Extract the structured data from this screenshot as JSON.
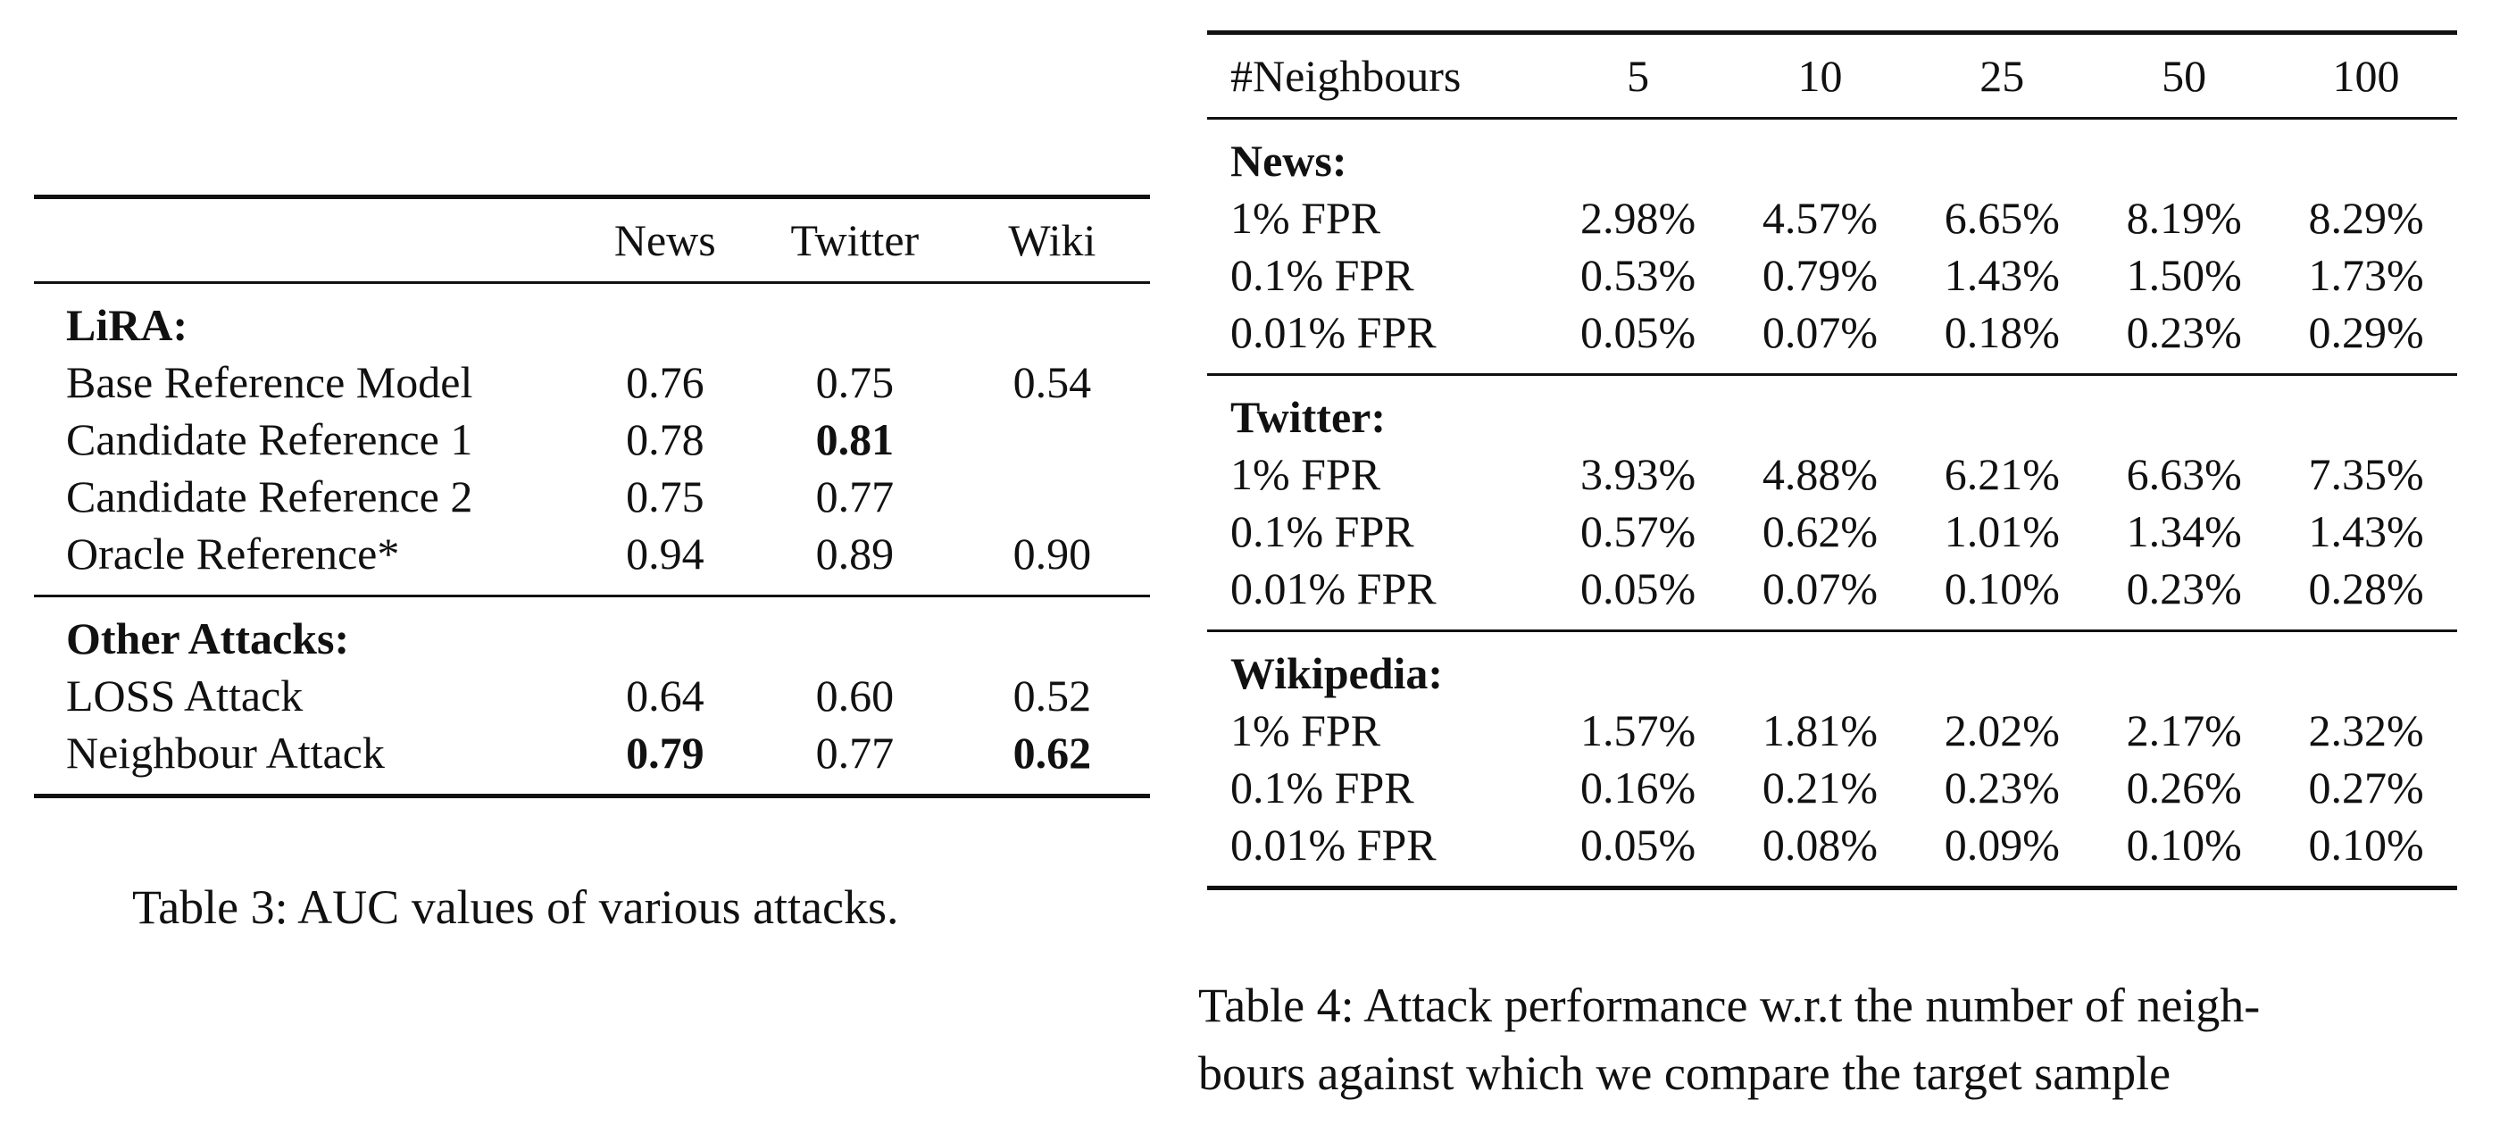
{
  "table3": {
    "columns": [
      "",
      "News",
      "Twitter",
      "Wiki"
    ],
    "sections": [
      {
        "title": "LiRA:",
        "rows": [
          {
            "label": "Base Reference Model",
            "values": [
              "0.76",
              "0.75",
              "0.54"
            ],
            "bold": [
              false,
              false,
              false
            ]
          },
          {
            "label": "Candidate Reference 1",
            "values": [
              "0.78",
              "0.81",
              ""
            ],
            "bold": [
              false,
              true,
              false
            ]
          },
          {
            "label": "Candidate Reference 2",
            "values": [
              "0.75",
              "0.77",
              ""
            ],
            "bold": [
              false,
              false,
              false
            ]
          },
          {
            "label": "Oracle Reference*",
            "values": [
              "0.94",
              "0.89",
              "0.90"
            ],
            "bold": [
              false,
              false,
              false
            ]
          }
        ]
      },
      {
        "title": "Other Attacks:",
        "rows": [
          {
            "label": "LOSS Attack",
            "values": [
              "0.64",
              "0.60",
              "0.52"
            ],
            "bold": [
              false,
              false,
              false
            ]
          },
          {
            "label": "Neighbour Attack",
            "values": [
              "0.79",
              "0.77",
              "0.62"
            ],
            "bold": [
              true,
              false,
              true
            ]
          }
        ]
      }
    ],
    "caption": "Table 3: AUC values of various attacks."
  },
  "table4": {
    "columns": [
      "#Neighbours",
      "5",
      "10",
      "25",
      "50",
      "100"
    ],
    "sections": [
      {
        "title": "News:",
        "rows": [
          {
            "label": "1% FPR",
            "values": [
              "2.98%",
              "4.57%",
              "6.65%",
              "8.19%",
              "8.29%"
            ]
          },
          {
            "label": "0.1% FPR",
            "values": [
              "0.53%",
              "0.79%",
              "1.43%",
              "1.50%",
              "1.73%"
            ]
          },
          {
            "label": "0.01% FPR",
            "values": [
              "0.05%",
              "0.07%",
              "0.18%",
              "0.23%",
              "0.29%"
            ]
          }
        ]
      },
      {
        "title": "Twitter:",
        "rows": [
          {
            "label": "1% FPR",
            "values": [
              "3.93%",
              "4.88%",
              "6.21%",
              "6.63%",
              "7.35%"
            ]
          },
          {
            "label": "0.1% FPR",
            "values": [
              "0.57%",
              "0.62%",
              "1.01%",
              "1.34%",
              "1.43%"
            ]
          },
          {
            "label": "0.01% FPR",
            "values": [
              "0.05%",
              "0.07%",
              "0.10%",
              "0.23%",
              "0.28%"
            ]
          }
        ]
      },
      {
        "title": "Wikipedia:",
        "rows": [
          {
            "label": "1% FPR",
            "values": [
              "1.57%",
              "1.81%",
              "2.02%",
              "2.17%",
              "2.32%"
            ]
          },
          {
            "label": "0.1% FPR",
            "values": [
              "0.16%",
              "0.21%",
              "0.23%",
              "0.26%",
              "0.27%"
            ]
          },
          {
            "label": "0.01% FPR",
            "values": [
              "0.05%",
              "0.08%",
              "0.09%",
              "0.10%",
              "0.10%"
            ]
          }
        ]
      }
    ],
    "caption_line1": "Table 4: Attack performance w.r.t the number of neigh-",
    "caption_line2": "bours against which we compare the target sample"
  }
}
